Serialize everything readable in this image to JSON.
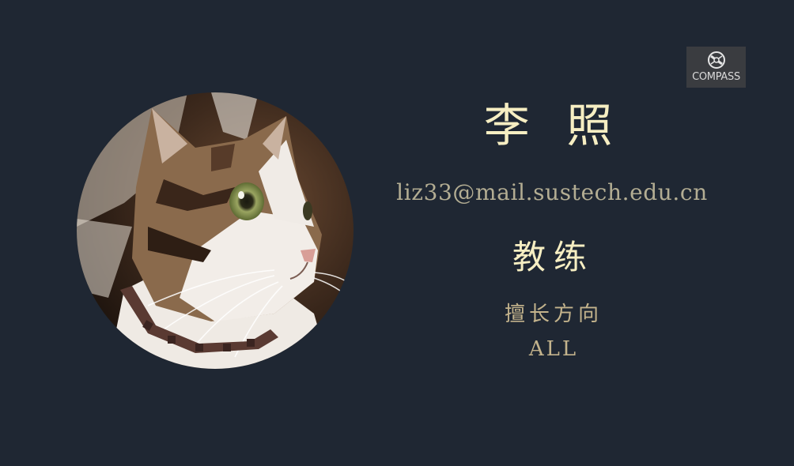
{
  "profile": {
    "name": "李 照",
    "email": "liz33@mail.sustech.edu.cn",
    "role": "教练",
    "specialty_label": "擅长方向",
    "specialty_value": "ALL"
  },
  "logo": {
    "text": "COMPASS",
    "icon": "compass-icon"
  },
  "avatar": {
    "subject": "cat-photo"
  },
  "colors": {
    "background": "#1f2733",
    "primary_text": "#f6eec2",
    "secondary_text": "#b3ad93",
    "accent_text": "#c3b38c",
    "logo_bg": "#3a3c40"
  }
}
